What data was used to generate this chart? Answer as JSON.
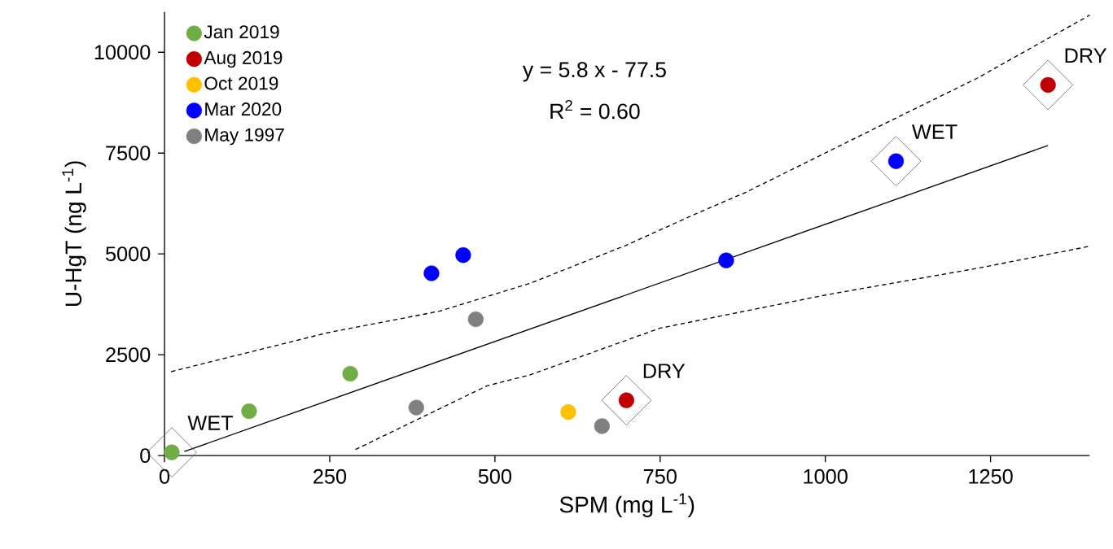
{
  "chart_data": {
    "type": "scatter",
    "xlabel": "SPM  (mg L$^{-1}$)",
    "ylabel": "U-HgT  (ng L$^{-1}$)",
    "xlim": [
      0,
      1400
    ],
    "xticks": [
      0,
      250,
      500,
      750,
      1000,
      1250
    ],
    "ylim": [
      0,
      11000
    ],
    "yticks": [
      0,
      2500,
      5000,
      7500,
      10000
    ],
    "grid": false,
    "legend": "top left",
    "series": [
      {
        "name": "Jan 2019",
        "color": "#70ad47",
        "marker": "circle",
        "x": [
          11,
          128,
          281
        ],
        "values": [
          80,
          1100,
          2030
        ]
      },
      {
        "name": "Aug 2019",
        "color": "#c00000",
        "marker": "circle",
        "x": [
          699,
          1337
        ],
        "values": [
          1370,
          9190
        ]
      },
      {
        "name": "Oct 2019",
        "color": "#ffc000",
        "marker": "circle",
        "x": [
          611
        ],
        "values": [
          1080
        ]
      },
      {
        "name": "Mar 2020",
        "color": "#0000ff",
        "marker": "circle",
        "x": [
          404,
          452,
          850,
          1107
        ],
        "values": [
          4520,
          4970,
          4840,
          7300
        ]
      },
      {
        "name": "May 1997",
        "color": "#808080",
        "marker": "circle",
        "x": [
          381,
          471,
          662
        ],
        "values": [
          1190,
          3380,
          730
        ]
      },
      {
        "type": "line",
        "color": "#000000",
        "line_style": "solid",
        "marker": "none",
        "x": [
          30,
          1337
        ],
        "values": [
          100,
          7690
        ]
      },
      {
        "type": "line",
        "color": "#000000",
        "line_style": "dashed",
        "marker": "none",
        "x": [
          10,
          245,
          416,
          553,
          698,
          802,
          880,
          1060,
          1229,
          1400
        ],
        "values": [
          2080,
          3040,
          3580,
          4270,
          5210,
          5980,
          6530,
          7990,
          9350,
          10920
        ]
      },
      {
        "type": "line",
        "color": "#000000",
        "line_style": "dashed",
        "marker": "none",
        "x": [
          289,
          488,
          553,
          750,
          1003,
          1229,
          1400
        ],
        "values": [
          150,
          1730,
          2000,
          3160,
          3990,
          4640,
          5190
        ]
      }
    ],
    "annotations": [
      {
        "text": "WET",
        "x": 11,
        "y": 80
      },
      {
        "text": "DRY",
        "x": 699,
        "y": 1370
      },
      {
        "text": "WET",
        "x": 1107,
        "y": 7300
      },
      {
        "text": "DRY",
        "x": 1337,
        "y": 9190
      },
      "y = 5.8 x - 77.5",
      "R$^{2}$ = 0.60"
    ]
  }
}
